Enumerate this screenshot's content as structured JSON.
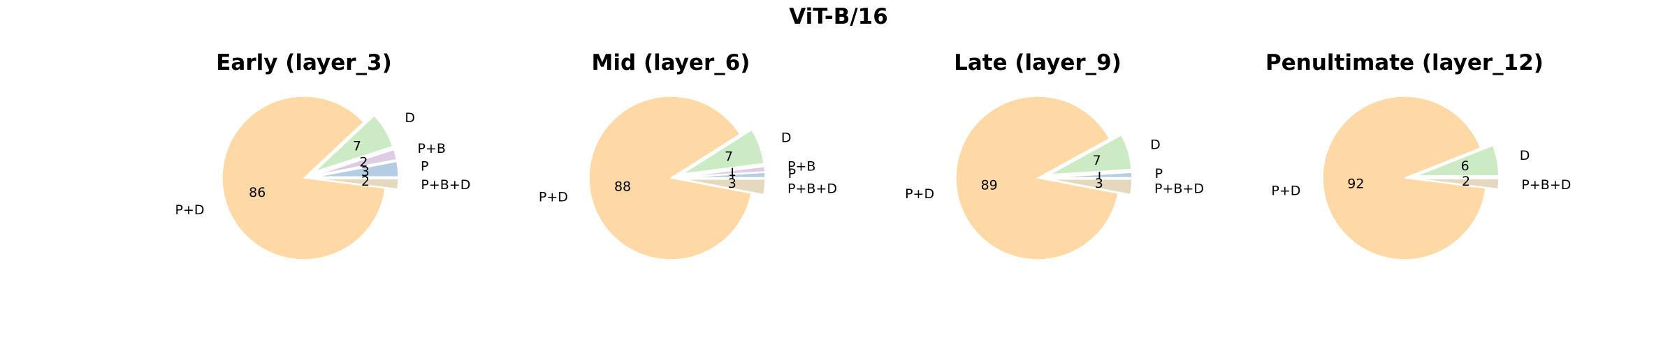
{
  "figure": {
    "title": "ViT-B/16"
  },
  "colors": {
    "P": "#b3cde3",
    "P+B": "#decbe4",
    "D": "#ccebc5",
    "P+D": "#fed9a6",
    "P+B+D": "#e5d8bd"
  },
  "chart_data": [
    {
      "type": "pie",
      "title": "Early (layer_3)",
      "labels": [
        "P",
        "P+B",
        "D",
        "P+D",
        "P+B+D"
      ],
      "values": [
        3,
        2,
        7,
        86,
        2
      ],
      "exploded": [
        "P",
        "P+B",
        "D",
        "P+B+D"
      ]
    },
    {
      "type": "pie",
      "title": "Mid (layer_6)",
      "labels": [
        "P",
        "P+B",
        "D",
        "P+D",
        "P+B+D"
      ],
      "values": [
        1,
        1,
        7,
        88,
        3
      ],
      "exploded": [
        "P",
        "P+B",
        "D",
        "P+B+D"
      ]
    },
    {
      "type": "pie",
      "title": "Late (layer_9)",
      "labels": [
        "P",
        "D",
        "P+D",
        "P+B+D"
      ],
      "values": [
        1,
        7,
        89,
        3
      ],
      "exploded": [
        "P",
        "D",
        "P+B+D"
      ]
    },
    {
      "type": "pie",
      "title": "Penultimate (layer_12)",
      "labels": [
        "D",
        "P+D",
        "P+B+D"
      ],
      "values": [
        6,
        92,
        2
      ],
      "exploded": [
        "D",
        "P+B+D"
      ]
    }
  ]
}
